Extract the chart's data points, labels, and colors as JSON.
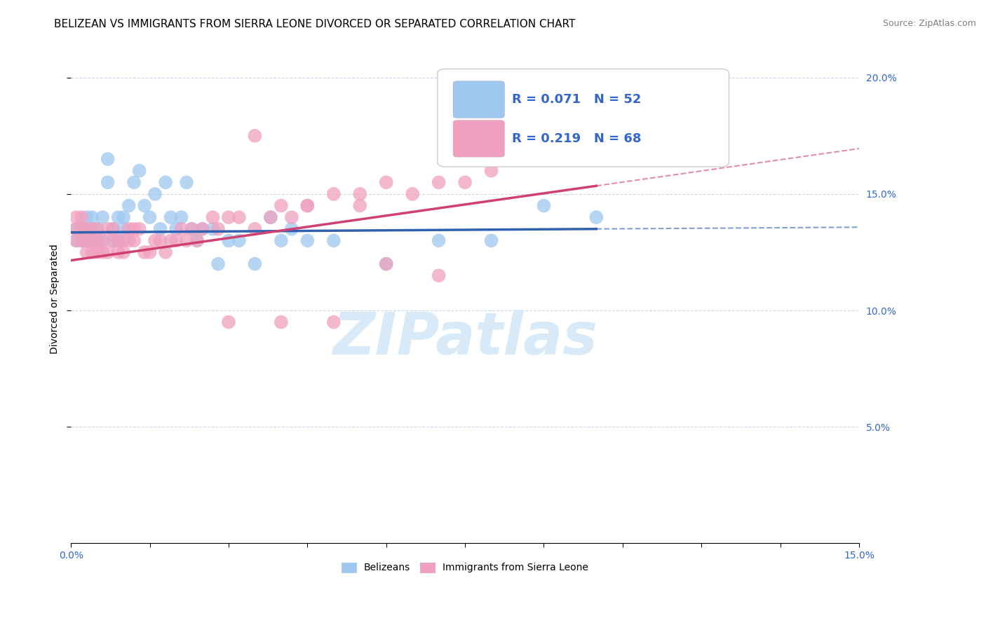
{
  "title": "BELIZEAN VS IMMIGRANTS FROM SIERRA LEONE DIVORCED OR SEPARATED CORRELATION CHART",
  "source": "Source: ZipAtlas.com",
  "ylabel": "Divorced or Separated",
  "xlim": [
    0.0,
    0.15
  ],
  "ylim": [
    0.0,
    0.21
  ],
  "blue_scatter_color": "#9ec8f0",
  "pink_scatter_color": "#f0a0be",
  "blue_line_color": "#3060b0",
  "pink_line_color": "#d04070",
  "watermark": "ZIPatlas",
  "watermark_color": "#ddeeff",
  "grid_color": "#c8d8e8",
  "background_color": "#ffffff",
  "title_fontsize": 11,
  "axis_label_fontsize": 10,
  "tick_fontsize": 10,
  "blue_scatter_x": [
    0.001,
    0.001,
    0.002,
    0.002,
    0.003,
    0.003,
    0.003,
    0.004,
    0.004,
    0.004,
    0.005,
    0.005,
    0.006,
    0.006,
    0.007,
    0.007,
    0.008,
    0.008,
    0.009,
    0.009,
    0.01,
    0.01,
    0.011,
    0.012,
    0.013,
    0.014,
    0.015,
    0.016,
    0.017,
    0.018,
    0.019,
    0.02,
    0.021,
    0.022,
    0.023,
    0.024,
    0.025,
    0.027,
    0.028,
    0.03,
    0.032,
    0.035,
    0.038,
    0.04,
    0.042,
    0.045,
    0.05,
    0.06,
    0.07,
    0.08,
    0.09,
    0.1
  ],
  "blue_scatter_y": [
    0.13,
    0.135,
    0.13,
    0.135,
    0.13,
    0.135,
    0.14,
    0.13,
    0.135,
    0.14,
    0.13,
    0.135,
    0.13,
    0.14,
    0.155,
    0.165,
    0.13,
    0.135,
    0.13,
    0.14,
    0.135,
    0.14,
    0.145,
    0.155,
    0.16,
    0.145,
    0.14,
    0.15,
    0.135,
    0.155,
    0.14,
    0.135,
    0.14,
    0.155,
    0.135,
    0.13,
    0.135,
    0.135,
    0.12,
    0.13,
    0.13,
    0.12,
    0.14,
    0.13,
    0.135,
    0.13,
    0.13,
    0.12,
    0.13,
    0.13,
    0.145,
    0.14
  ],
  "pink_scatter_x": [
    0.001,
    0.001,
    0.001,
    0.002,
    0.002,
    0.002,
    0.003,
    0.003,
    0.003,
    0.004,
    0.004,
    0.004,
    0.005,
    0.005,
    0.005,
    0.006,
    0.006,
    0.007,
    0.007,
    0.008,
    0.008,
    0.009,
    0.009,
    0.01,
    0.01,
    0.011,
    0.011,
    0.012,
    0.012,
    0.013,
    0.014,
    0.015,
    0.016,
    0.017,
    0.018,
    0.019,
    0.02,
    0.021,
    0.022,
    0.023,
    0.024,
    0.025,
    0.027,
    0.028,
    0.03,
    0.032,
    0.035,
    0.038,
    0.04,
    0.042,
    0.045,
    0.05,
    0.055,
    0.06,
    0.065,
    0.07,
    0.075,
    0.08,
    0.09,
    0.1,
    0.03,
    0.04,
    0.05,
    0.035,
    0.045,
    0.055,
    0.06,
    0.07
  ],
  "pink_scatter_y": [
    0.13,
    0.135,
    0.14,
    0.13,
    0.135,
    0.14,
    0.125,
    0.13,
    0.135,
    0.125,
    0.13,
    0.135,
    0.125,
    0.13,
    0.135,
    0.125,
    0.13,
    0.125,
    0.135,
    0.13,
    0.135,
    0.125,
    0.13,
    0.125,
    0.13,
    0.13,
    0.135,
    0.13,
    0.135,
    0.135,
    0.125,
    0.125,
    0.13,
    0.13,
    0.125,
    0.13,
    0.13,
    0.135,
    0.13,
    0.135,
    0.13,
    0.135,
    0.14,
    0.135,
    0.14,
    0.14,
    0.135,
    0.14,
    0.145,
    0.14,
    0.145,
    0.15,
    0.145,
    0.155,
    0.15,
    0.155,
    0.155,
    0.16,
    0.165,
    0.17,
    0.095,
    0.095,
    0.095,
    0.175,
    0.145,
    0.15,
    0.12,
    0.115
  ],
  "blue_line_intercept": 0.1335,
  "blue_line_slope": 0.015,
  "pink_line_intercept": 0.1215,
  "pink_line_slope": 0.32
}
